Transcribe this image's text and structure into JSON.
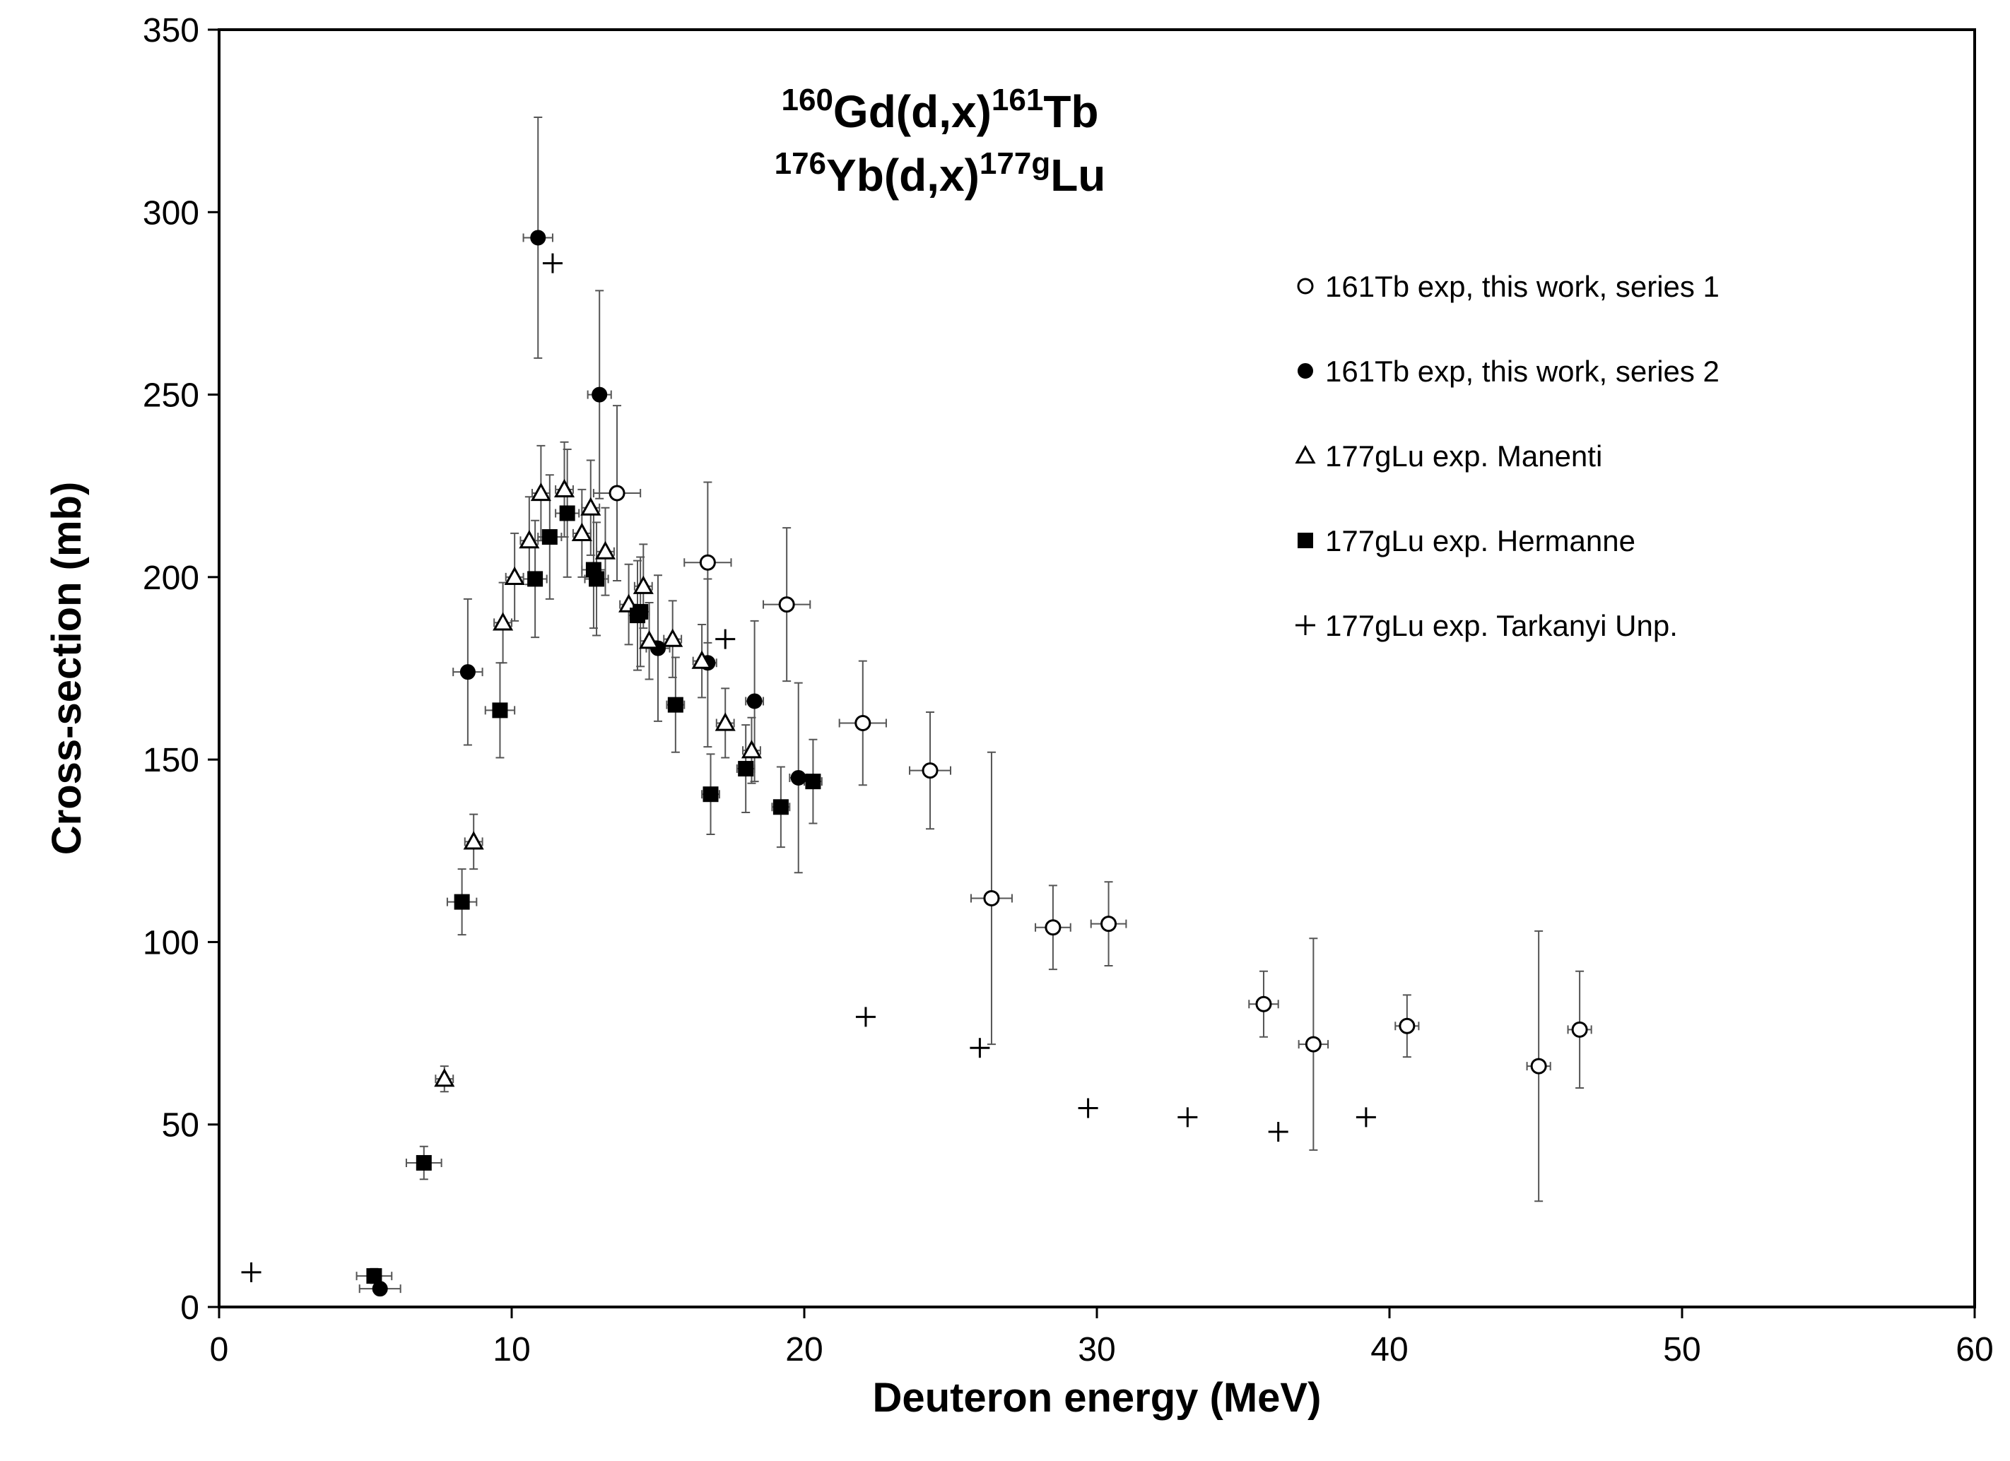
{
  "chart_data": {
    "type": "scatter",
    "title_lines": [
      [
        {
          "sup": "160"
        },
        {
          "text": "Gd(d,x)"
        },
        {
          "sup": "161"
        },
        {
          "text": "Tb"
        }
      ],
      [
        {
          "sup": "176"
        },
        {
          "text": "Yb(d,x)"
        },
        {
          "sup": "177g"
        },
        {
          "text": "Lu"
        }
      ]
    ],
    "xlabel": "Deuteron energy (MeV)",
    "ylabel": "Cross-section (mb)",
    "xlim": [
      0,
      60
    ],
    "ylim": [
      0,
      350
    ],
    "xticks": [
      0,
      10,
      20,
      30,
      40,
      50,
      60
    ],
    "yticks": [
      0,
      50,
      100,
      150,
      200,
      250,
      300,
      350
    ],
    "grid": false,
    "legend_position": "top-right",
    "series": [
      {
        "name": "161Tb exp, this work, series 1",
        "marker": "circle-open",
        "points": [
          {
            "x": 13.6,
            "y": 223,
            "xerr": 0.8,
            "yerr": 24
          },
          {
            "x": 16.7,
            "y": 204,
            "xerr": 0.8,
            "yerr": 22
          },
          {
            "x": 19.4,
            "y": 192.5,
            "xerr": 0.8,
            "yerr": 21
          },
          {
            "x": 22.0,
            "y": 160,
            "xerr": 0.8,
            "yerr": 17
          },
          {
            "x": 24.3,
            "y": 147,
            "xerr": 0.7,
            "yerr": 16
          },
          {
            "x": 26.4,
            "y": 112,
            "xerr": 0.7,
            "yerr": 40
          },
          {
            "x": 28.5,
            "y": 104,
            "xerr": 0.6,
            "yerr": 11.5
          },
          {
            "x": 30.4,
            "y": 105,
            "xerr": 0.6,
            "yerr": 11.5
          },
          {
            "x": 35.7,
            "y": 83,
            "xerr": 0.5,
            "yerr": 9
          },
          {
            "x": 37.4,
            "y": 72,
            "xerr": 0.5,
            "yerr": 29
          },
          {
            "x": 40.6,
            "y": 77,
            "xerr": 0.4,
            "yerr": 8.5
          },
          {
            "x": 45.1,
            "y": 66,
            "xerr": 0.4,
            "yerr": 37
          },
          {
            "x": 46.5,
            "y": 76,
            "xerr": 0.4,
            "yerr": 16
          }
        ]
      },
      {
        "name": "161Tb exp, this work, series 2",
        "marker": "circle-filled",
        "points": [
          {
            "x": 5.5,
            "y": 5,
            "xerr": 0.7,
            "yerr": 0
          },
          {
            "x": 8.5,
            "y": 174,
            "xerr": 0.5,
            "yerr": 20
          },
          {
            "x": 10.9,
            "y": 293,
            "xerr": 0.5,
            "yerr": 33
          },
          {
            "x": 13.0,
            "y": 250,
            "xerr": 0.4,
            "yerr": 28.5
          },
          {
            "x": 15.0,
            "y": 180.5,
            "xerr": 0.4,
            "yerr": 20
          },
          {
            "x": 16.7,
            "y": 176.5,
            "xerr": 0.3,
            "yerr": 23
          },
          {
            "x": 18.3,
            "y": 166,
            "xerr": 0.3,
            "yerr": 22
          },
          {
            "x": 19.8,
            "y": 145,
            "xerr": 0.3,
            "yerr": 26
          }
        ]
      },
      {
        "name": "177gLu exp. Manenti",
        "marker": "triangle-open",
        "points": [
          {
            "x": 7.7,
            "y": 62.5,
            "xerr": 0.3,
            "yerr": 3.5
          },
          {
            "x": 8.7,
            "y": 127.5,
            "xerr": 0.3,
            "yerr": 7.5
          },
          {
            "x": 9.7,
            "y": 187.5,
            "xerr": 0.3,
            "yerr": 11
          },
          {
            "x": 10.1,
            "y": 200,
            "xerr": 0.3,
            "yerr": 12
          },
          {
            "x": 10.6,
            "y": 210,
            "xerr": 0.3,
            "yerr": 12
          },
          {
            "x": 11.0,
            "y": 223,
            "xerr": 0.3,
            "yerr": 13
          },
          {
            "x": 11.8,
            "y": 224,
            "xerr": 0.3,
            "yerr": 13
          },
          {
            "x": 12.4,
            "y": 212,
            "xerr": 0.3,
            "yerr": 12
          },
          {
            "x": 12.7,
            "y": 219,
            "xerr": 0.3,
            "yerr": 13
          },
          {
            "x": 13.2,
            "y": 207,
            "xerr": 0.3,
            "yerr": 12
          },
          {
            "x": 14.0,
            "y": 192.5,
            "xerr": 0.3,
            "yerr": 11
          },
          {
            "x": 14.5,
            "y": 197.5,
            "xerr": 0.3,
            "yerr": 11.5
          },
          {
            "x": 14.7,
            "y": 182.5,
            "xerr": 0.3,
            "yerr": 10.5
          },
          {
            "x": 15.5,
            "y": 183,
            "xerr": 0.3,
            "yerr": 10.5
          },
          {
            "x": 16.5,
            "y": 177,
            "xerr": 0.3,
            "yerr": 10
          },
          {
            "x": 17.3,
            "y": 160,
            "xerr": 0.3,
            "yerr": 9.5
          },
          {
            "x": 18.2,
            "y": 152.5,
            "xerr": 0.3,
            "yerr": 9
          }
        ]
      },
      {
        "name": "177gLu  exp. Hermanne",
        "marker": "square-filled",
        "points": [
          {
            "x": 5.3,
            "y": 8.5,
            "xerr": 0.6,
            "yerr": 2
          },
          {
            "x": 7.0,
            "y": 39.5,
            "xerr": 0.6,
            "yerr": 4.5
          },
          {
            "x": 8.3,
            "y": 111,
            "xerr": 0.5,
            "yerr": 9
          },
          {
            "x": 9.6,
            "y": 163.5,
            "xerr": 0.5,
            "yerr": 13
          },
          {
            "x": 10.8,
            "y": 199.5,
            "xerr": 0.4,
            "yerr": 16
          },
          {
            "x": 11.3,
            "y": 211,
            "xerr": 0.4,
            "yerr": 17
          },
          {
            "x": 11.9,
            "y": 217.5,
            "xerr": 0.4,
            "yerr": 17.5
          },
          {
            "x": 12.8,
            "y": 202,
            "xerr": 0.4,
            "yerr": 16
          },
          {
            "x": 12.9,
            "y": 199.5,
            "xerr": 0.4,
            "yerr": 15.5
          },
          {
            "x": 14.3,
            "y": 189.5,
            "xerr": 0.3,
            "yerr": 15
          },
          {
            "x": 14.4,
            "y": 190.5,
            "xerr": 0.3,
            "yerr": 15
          },
          {
            "x": 15.6,
            "y": 165,
            "xerr": 0.3,
            "yerr": 13
          },
          {
            "x": 16.8,
            "y": 140.5,
            "xerr": 0.3,
            "yerr": 11
          },
          {
            "x": 18.0,
            "y": 147.5,
            "xerr": 0.3,
            "yerr": 12
          },
          {
            "x": 19.2,
            "y": 137,
            "xerr": 0.3,
            "yerr": 11
          },
          {
            "x": 20.3,
            "y": 144,
            "xerr": 0.3,
            "yerr": 11.5
          }
        ]
      },
      {
        "name": "177gLu exp. Tarkanyi Unp.",
        "marker": "plus",
        "points": [
          {
            "x": 1.1,
            "y": 9.5,
            "xerr": 0,
            "yerr": 0
          },
          {
            "x": 11.4,
            "y": 286,
            "xerr": 0,
            "yerr": 0
          },
          {
            "x": 17.3,
            "y": 183,
            "xerr": 0,
            "yerr": 0
          },
          {
            "x": 22.1,
            "y": 79.5,
            "xerr": 0,
            "yerr": 0
          },
          {
            "x": 26.0,
            "y": 71,
            "xerr": 0,
            "yerr": 0
          },
          {
            "x": 29.7,
            "y": 54.5,
            "xerr": 0,
            "yerr": 0
          },
          {
            "x": 33.1,
            "y": 52,
            "xerr": 0,
            "yerr": 0
          },
          {
            "x": 36.2,
            "y": 48,
            "xerr": 0,
            "yerr": 0
          },
          {
            "x": 39.2,
            "y": 52,
            "xerr": 0,
            "yerr": 0
          }
        ]
      }
    ]
  }
}
